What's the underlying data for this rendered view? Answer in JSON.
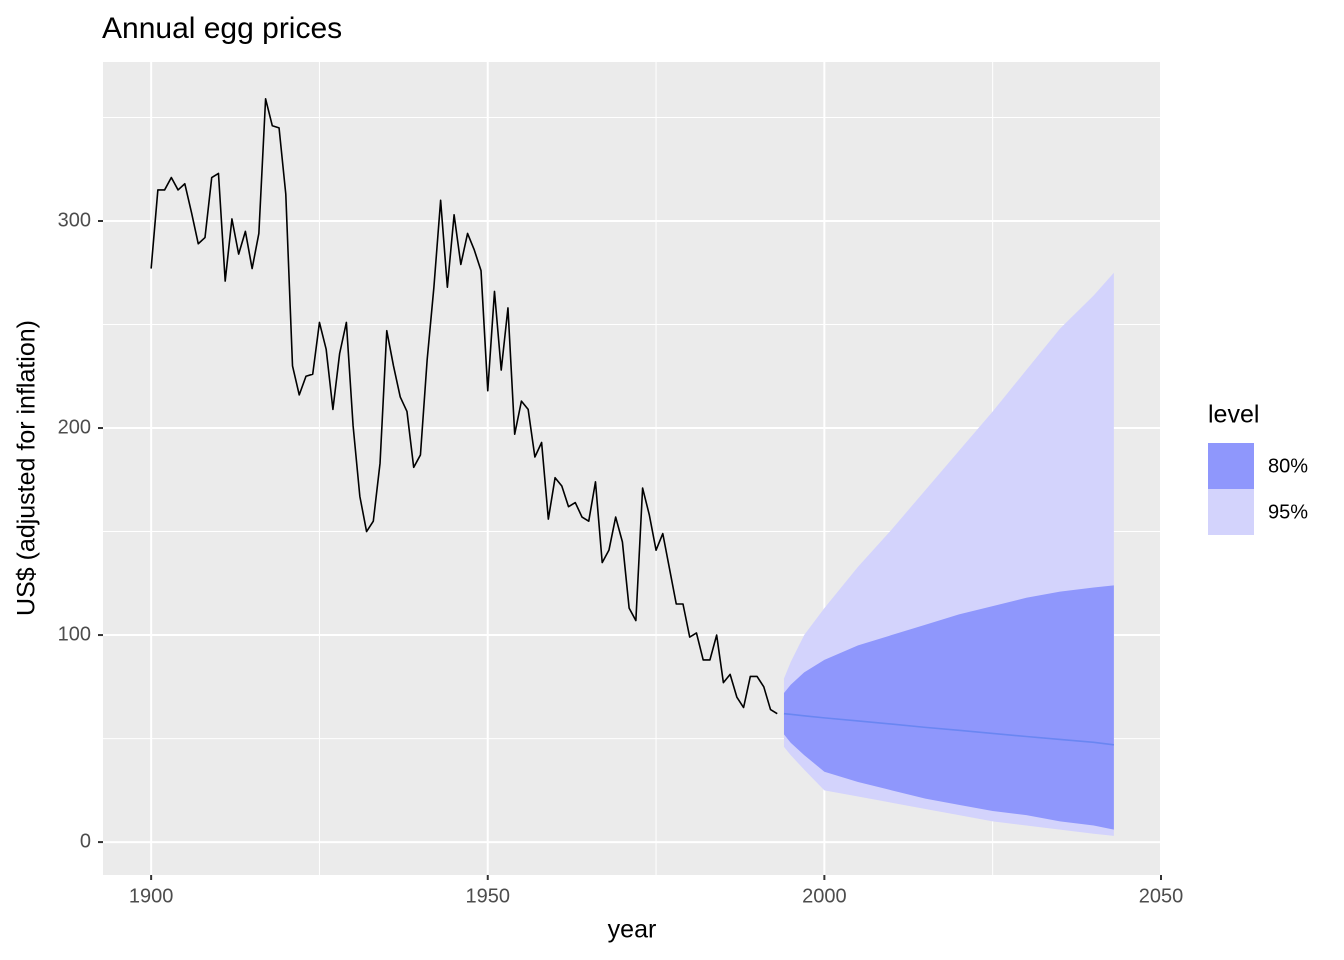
{
  "chart_data": {
    "type": "line",
    "title": "Annual egg prices",
    "x_label": "year",
    "y_label": "US$ (adjusted for inflation)",
    "xlim": [
      1892.85,
      2050.15
    ],
    "ylim": [
      -15.9,
      376.8
    ],
    "xticks": [
      1900,
      1950,
      2000,
      2050
    ],
    "yticks": [
      0,
      100,
      200,
      300
    ],
    "grid": true,
    "legend_title": "level",
    "legend_position": "right",
    "series": [
      {
        "color": "#000000",
        "x": [
          1900,
          1901,
          1902,
          1903,
          1904,
          1905,
          1906,
          1907,
          1908,
          1909,
          1910,
          1911,
          1912,
          1913,
          1914,
          1915,
          1916,
          1917,
          1918,
          1919,
          1920,
          1921,
          1922,
          1923,
          1924,
          1925,
          1926,
          1927,
          1928,
          1929,
          1930,
          1931,
          1932,
          1933,
          1934,
          1935,
          1936,
          1937,
          1938,
          1939,
          1940,
          1941,
          1942,
          1943,
          1944,
          1945,
          1946,
          1947,
          1948,
          1949,
          1950,
          1951,
          1952,
          1953,
          1954,
          1955,
          1956,
          1957,
          1958,
          1959,
          1960,
          1961,
          1962,
          1963,
          1964,
          1965,
          1966,
          1967,
          1968,
          1969,
          1970,
          1971,
          1972,
          1973,
          1974,
          1975,
          1976,
          1977,
          1978,
          1979,
          1980,
          1981,
          1982,
          1983,
          1984,
          1985,
          1986,
          1987,
          1988,
          1989,
          1990,
          1991,
          1992,
          1993
        ],
        "values": [
          277,
          315,
          315,
          321,
          315,
          318,
          304,
          289,
          292,
          321,
          323,
          271,
          301,
          284,
          295,
          277,
          294,
          359,
          346,
          345,
          313,
          230,
          216,
          225,
          226,
          251,
          238,
          209,
          236,
          251,
          201,
          167,
          150,
          155,
          183,
          247,
          230,
          215,
          208,
          181,
          187,
          233,
          268,
          310,
          268,
          303,
          279,
          294,
          286,
          276,
          218,
          266,
          228,
          258,
          197,
          213,
          209,
          186,
          193,
          156,
          176,
          172,
          162,
          164,
          157,
          155,
          174,
          135,
          141,
          157,
          145,
          113,
          107,
          171,
          158,
          141,
          149,
          132,
          115,
          115,
          99,
          101,
          88,
          88,
          100,
          77,
          81,
          70,
          65,
          80,
          80,
          75,
          64,
          62
        ]
      },
      {
        "color": "#6a86f2",
        "x": [
          1994,
          1995,
          1997,
          2000,
          2005,
          2010,
          2015,
          2020,
          2025,
          2030,
          2035,
          2040,
          2043
        ],
        "values": [
          62,
          61.7,
          61,
          60,
          58.5,
          57,
          55.4,
          54,
          52.5,
          51,
          49.6,
          48.2,
          47
        ]
      }
    ],
    "intervals": [
      {
        "name": "95%",
        "color": "#d3d3fc",
        "x": [
          1994,
          1995,
          1997,
          2000,
          2005,
          2010,
          2015,
          2020,
          2025,
          2030,
          2035,
          2040,
          2043
        ],
        "lower": [
          46,
          42,
          35,
          25,
          22,
          19,
          16,
          13,
          10,
          8,
          6,
          4,
          3
        ],
        "upper": [
          79,
          87,
          100,
          113,
          133,
          151,
          170,
          189,
          208,
          228,
          248,
          264,
          275
        ]
      },
      {
        "name": "80%",
        "color": "#8f97fc",
        "x": [
          1994,
          1995,
          1997,
          2000,
          2005,
          2010,
          2015,
          2020,
          2025,
          2030,
          2035,
          2040,
          2043
        ],
        "lower": [
          52,
          48,
          42,
          34,
          29,
          25,
          21,
          18,
          15,
          13,
          10,
          8,
          6
        ],
        "upper": [
          72,
          76,
          82,
          88,
          95,
          100,
          105,
          110,
          114,
          118,
          121,
          123,
          124
        ]
      }
    ],
    "legend_order": [
      1,
      0
    ]
  }
}
